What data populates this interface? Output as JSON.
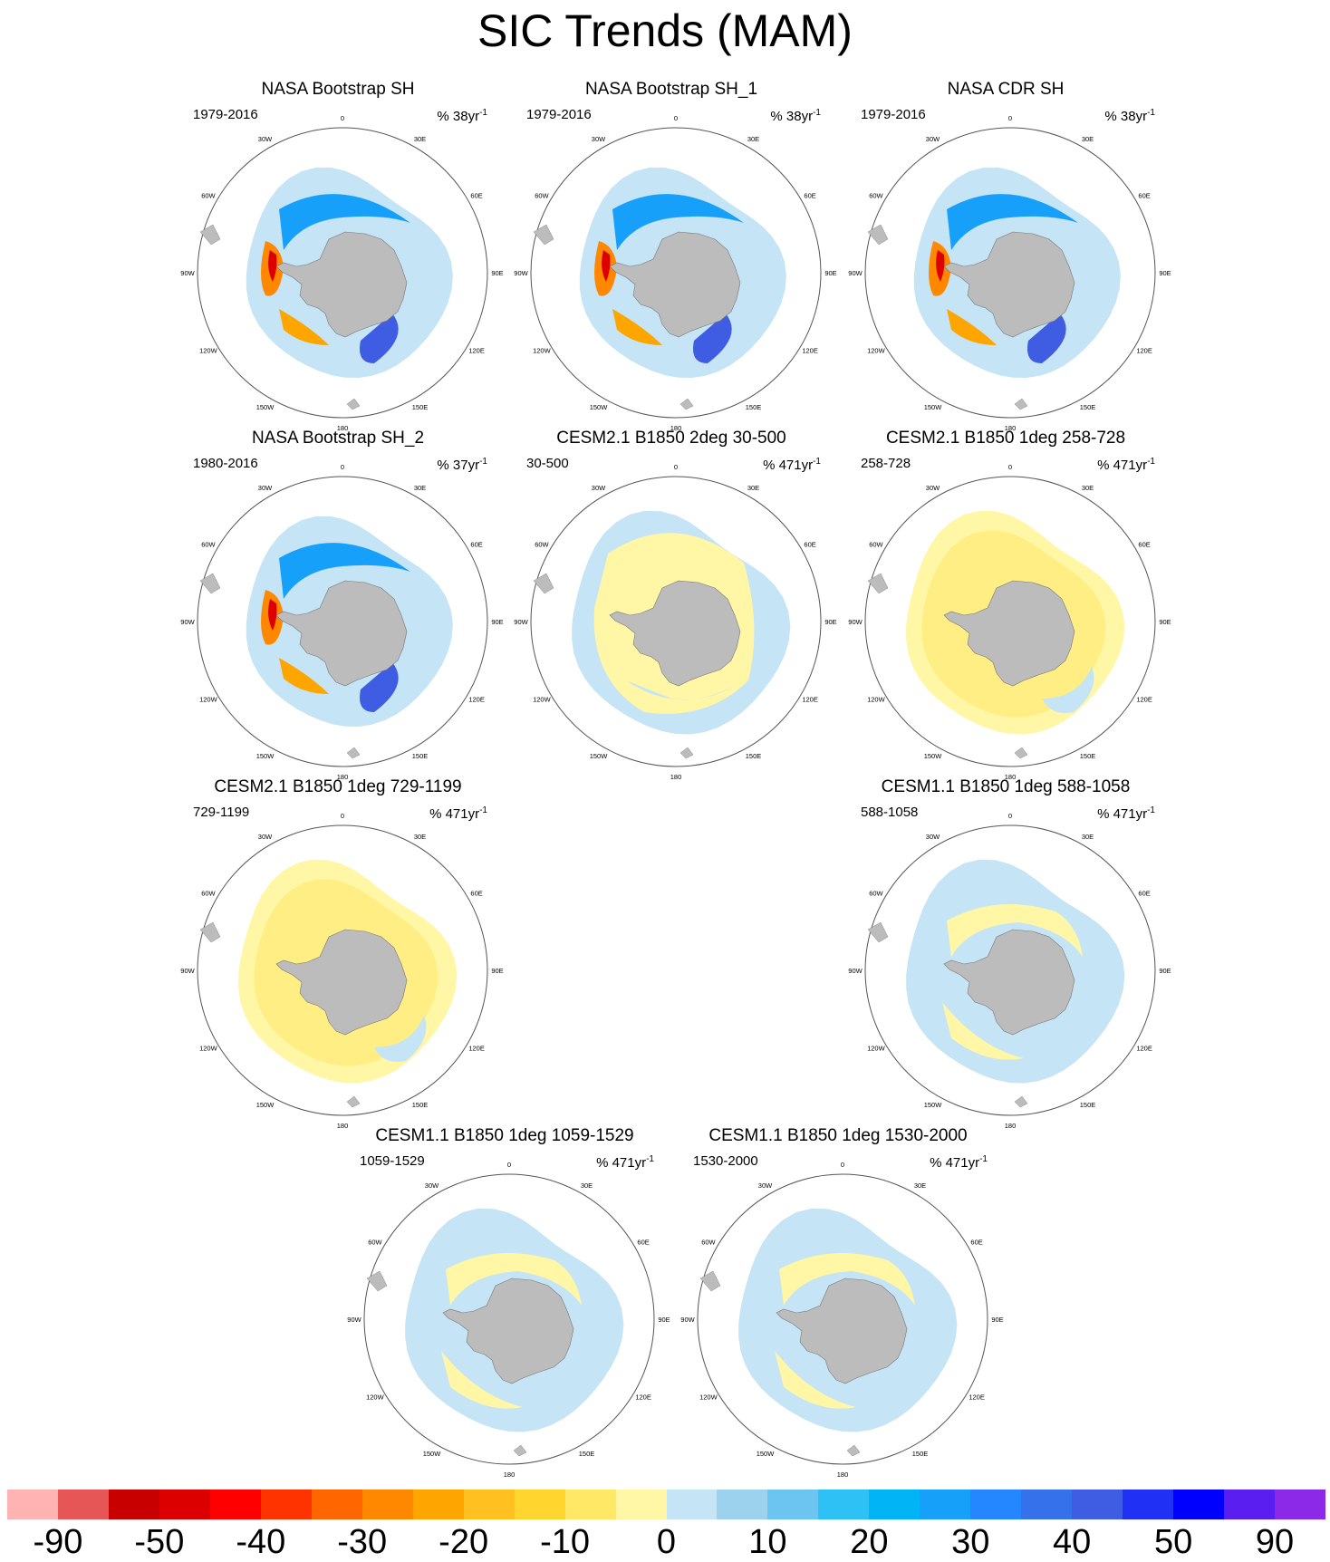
{
  "title": "SIC Trends (MAM)",
  "colors": {
    "land": "#BCBCBC",
    "circle": "#555555"
  },
  "chart_data": [
    {
      "type": "map",
      "title": "NASA Bootstrap SH",
      "period": "1979-2016",
      "units_prefix": "% 38yr",
      "units_exp": "-1",
      "style": "obs"
    },
    {
      "type": "map",
      "title": "NASA Bootstrap SH_1",
      "period": "1979-2016",
      "units_prefix": "% 38yr",
      "units_exp": "-1",
      "style": "obs"
    },
    {
      "type": "map",
      "title": "NASA CDR SH",
      "period": "1979-2016",
      "units_prefix": "% 38yr",
      "units_exp": "-1",
      "style": "obs"
    },
    {
      "type": "map",
      "title": "NASA Bootstrap SH_2",
      "period": "1980-2016",
      "units_prefix": "% 37yr",
      "units_exp": "-1",
      "style": "obs"
    },
    {
      "type": "map",
      "title": "CESM2.1 B1850 2deg 30-500",
      "period": "30-500",
      "units_prefix": "% 471yr",
      "units_exp": "-1",
      "style": "mix_yellow"
    },
    {
      "type": "map",
      "title": "CESM2.1 B1850 1deg 258-728",
      "period": "258-728",
      "units_prefix": "% 471yr",
      "units_exp": "-1",
      "style": "yellow"
    },
    {
      "type": "map",
      "title": "CESM2.1 B1850 1deg 729-1199",
      "period": "729-1199",
      "units_prefix": "% 471yr",
      "units_exp": "-1",
      "style": "yellow"
    },
    {
      "type": "map",
      "title": "CESM1.1 B1850 1deg 588-1058",
      "period": "588-1058",
      "units_prefix": "% 471yr",
      "units_exp": "-1",
      "style": "mix_blue"
    },
    {
      "type": "map",
      "title": "CESM1.1 B1850 1deg 1059-1529",
      "period": "1059-1529",
      "units_prefix": "% 471yr",
      "units_exp": "-1",
      "style": "mix_blue"
    },
    {
      "type": "map",
      "title": "CESM1.1 B1850 1deg 1530-2000",
      "period": "1530-2000",
      "units_prefix": "% 471yr",
      "units_exp": "-1",
      "style": "mix_blue"
    }
  ],
  "lon_labels": [
    "0",
    "30E",
    "60E",
    "90E",
    "120E",
    "150E",
    "180",
    "150W",
    "120W",
    "90W",
    "60W",
    "30W"
  ],
  "colorbar": {
    "colors": [
      "#FFB3B3",
      "#E65656",
      "#C80000",
      "#DC0000",
      "#FF0000",
      "#FF3300",
      "#FF6600",
      "#FF8800",
      "#FFA500",
      "#FFC020",
      "#FFD52E",
      "#FFE866",
      "#FFF7A6",
      "#C5E4F5",
      "#9DD2EF",
      "#6CC4F0",
      "#2EC1F5",
      "#00B4F5",
      "#16A0FA",
      "#2487FF",
      "#3471EB",
      "#3F5DE3",
      "#2030F5",
      "#0000FF",
      "#5A1FF0",
      "#8C28E8"
    ],
    "labels": [
      "-90",
      "-50",
      "-40",
      "-30",
      "-20",
      "-10",
      "0",
      "10",
      "20",
      "30",
      "40",
      "50",
      "90"
    ]
  }
}
